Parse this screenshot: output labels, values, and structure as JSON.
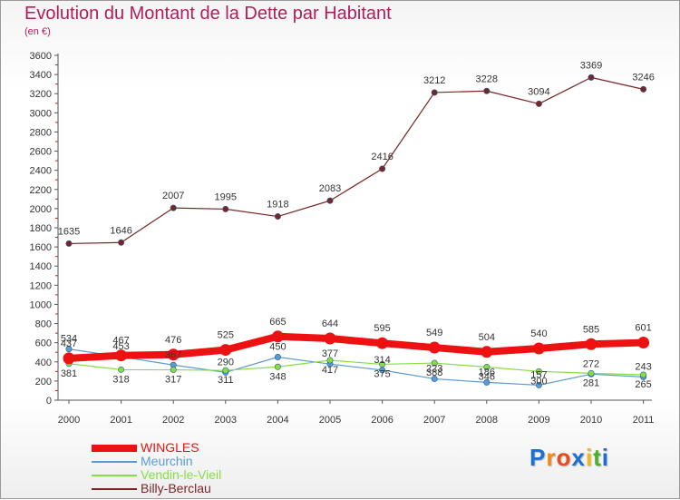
{
  "chart_data": {
    "type": "line",
    "title": "Evolution du Montant de la Dette par Habitant",
    "subtitle": "(en €)",
    "xlabel": "",
    "ylabel": "",
    "categories": [
      "2000",
      "2001",
      "2002",
      "2003",
      "2004",
      "2005",
      "2006",
      "2007",
      "2008",
      "2009",
      "2010",
      "2011"
    ],
    "ylim": [
      0,
      3600
    ],
    "yticks": [
      0,
      200,
      400,
      600,
      800,
      1000,
      1200,
      1400,
      1600,
      1800,
      2000,
      2200,
      2400,
      2600,
      2800,
      3000,
      3200,
      3400,
      3600
    ],
    "grid": false,
    "legend_position": "bottom-left",
    "series": [
      {
        "name": "WINGLES",
        "color": "#ee1111",
        "values": [
          437,
          467,
          476,
          525,
          665,
          644,
          595,
          549,
          504,
          540,
          585,
          601
        ],
        "labels": [
          "437",
          "467",
          "476",
          "525",
          "665",
          "644",
          "595",
          "549",
          "504",
          "540",
          "585",
          "601"
        ]
      },
      {
        "name": "Meurchin",
        "color": "#5b9bd5",
        "values": [
          534,
          453,
          367,
          290,
          450,
          377,
          314,
          223,
          186,
          157,
          272,
          243
        ],
        "labels": [
          "534",
          "453",
          "367",
          "290",
          "450",
          "377",
          "314",
          "223",
          "186",
          "157",
          "272",
          "243"
        ]
      },
      {
        "name": "Vendin-le-Vieil",
        "color": "#88dd44",
        "values": [
          381,
          318,
          317,
          311,
          348,
          417,
          375,
          388,
          346,
          300,
          281,
          265
        ],
        "labels": [
          "381",
          "318",
          "317",
          "311",
          "348",
          "417",
          "375",
          "388",
          "346",
          "300",
          "281",
          "265"
        ]
      },
      {
        "name": "Billy-Berclau",
        "color": "#7a2525",
        "values": [
          1635,
          1646,
          2007,
          1995,
          1918,
          2083,
          2416,
          3212,
          3228,
          3094,
          3369,
          3246
        ],
        "labels": [
          "1635",
          "1646",
          "2007",
          "1995",
          "1918",
          "2083",
          "2416",
          "3212",
          "3228",
          "3094",
          "3369",
          "3246"
        ]
      }
    ]
  },
  "legend": {
    "items": [
      {
        "label": "WINGLES",
        "color": "#ee1111"
      },
      {
        "label": "Meurchin",
        "color": "#5b9bd5"
      },
      {
        "label": "Vendin-le-Vieil",
        "color": "#88dd44"
      },
      {
        "label": "Billy-Berclau",
        "color": "#7a2525"
      }
    ]
  },
  "brand": {
    "letters": [
      "P",
      "r",
      "o",
      "x",
      "i",
      "t",
      "i"
    ],
    "colors": [
      "#1d6fd0",
      "#f08a1c",
      "#e84c1c",
      "#1d6fd0",
      "#f0b81c",
      "#4caf2a",
      "#1d6fd0"
    ]
  }
}
